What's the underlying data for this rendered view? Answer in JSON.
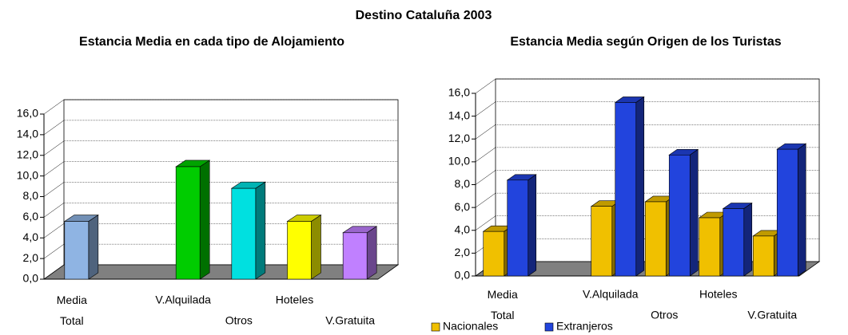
{
  "title": "Destino Cataluña 2003",
  "chart_data": [
    {
      "type": "bar3d",
      "title": "Estancia Media en cada tipo de Alojamiento",
      "categories": [
        "Media Total",
        null,
        "V.Alquilada",
        "Otros",
        "Hoteles",
        "V.Gratuita"
      ],
      "values": [
        5.6,
        null,
        10.9,
        8.8,
        5.6,
        4.5
      ],
      "colors": [
        "#8fb4e3",
        null,
        "#00cc00",
        "#00e0e0",
        "#ffff00",
        "#c080ff"
      ],
      "ylim": [
        0,
        16
      ],
      "yticks": [
        {
          "value": 0,
          "label": "0,0"
        },
        {
          "value": 2,
          "label": "2,0"
        },
        {
          "value": 4,
          "label": "4,0"
        },
        {
          "value": 6,
          "label": "6,0"
        },
        {
          "value": 8,
          "label": "8,0"
        },
        {
          "value": 10,
          "label": "10,0"
        },
        {
          "value": 12,
          "label": "12,0"
        },
        {
          "value": 14,
          "label": "14,0"
        },
        {
          "value": 16,
          "label": "16,0"
        }
      ],
      "grid": true
    },
    {
      "type": "groupedbar3d",
      "title": "Estancia Media según Origen de los Turistas",
      "categories": [
        "Media Total",
        null,
        "V.Alquilada",
        "Otros",
        "Hoteles",
        "V.Gratuita"
      ],
      "series": [
        {
          "name": "Nacionales",
          "color": "#f0c000",
          "values": [
            3.9,
            null,
            6.1,
            6.5,
            5.1,
            3.5
          ]
        },
        {
          "name": "Extranjeros",
          "color": "#2244dd",
          "values": [
            8.4,
            null,
            15.2,
            10.6,
            5.9,
            11.1
          ]
        }
      ],
      "ylim": [
        0,
        16
      ],
      "yticks": [
        {
          "value": 0,
          "label": "0,0"
        },
        {
          "value": 2,
          "label": "2,0"
        },
        {
          "value": 4,
          "label": "4,0"
        },
        {
          "value": 6,
          "label": "6,0"
        },
        {
          "value": 8,
          "label": "8,0"
        },
        {
          "value": 10,
          "label": "10,0"
        },
        {
          "value": 12,
          "label": "12,0"
        },
        {
          "value": 14,
          "label": "14,0"
        },
        {
          "value": 16,
          "label": "16,0"
        }
      ],
      "grid": true,
      "legend": "bottom"
    }
  ]
}
